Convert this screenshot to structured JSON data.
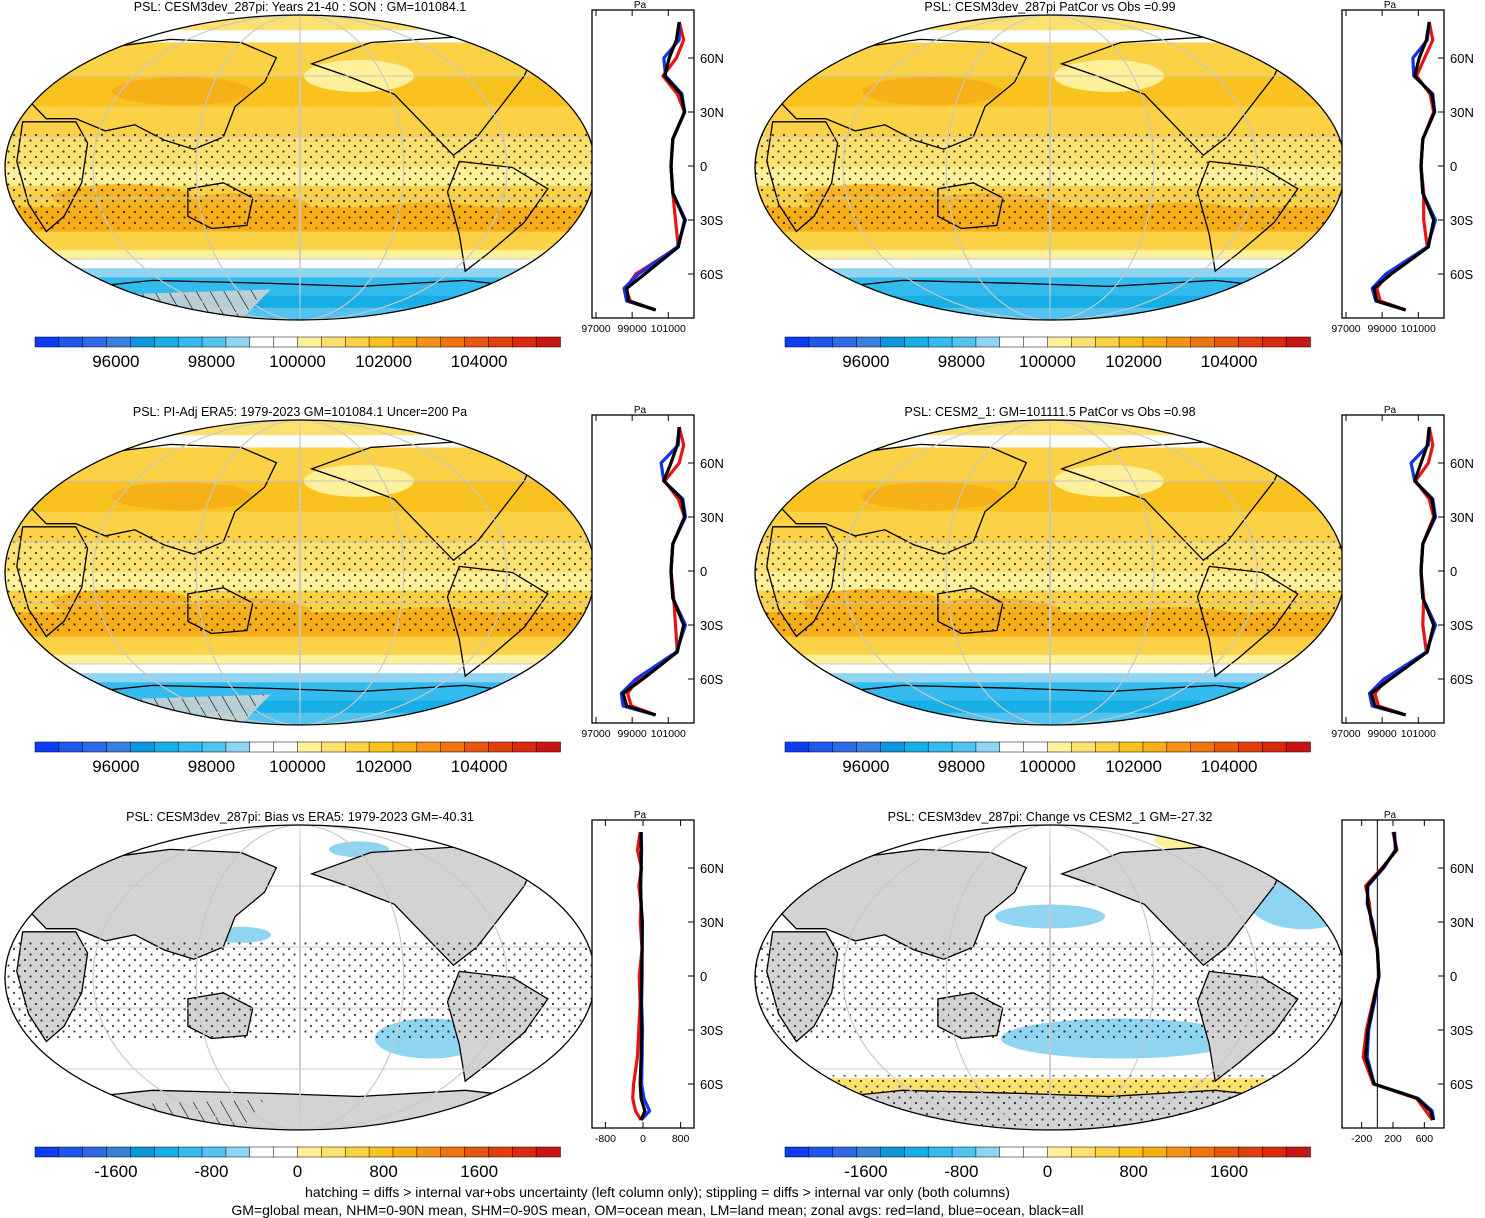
{
  "colors": {
    "scale": [
      "#0d3cf5",
      "#2058ee",
      "#2d6ae5",
      "#3a7fdc",
      "#0f96dc",
      "#18aee6",
      "#33bbef",
      "#52c3ef",
      "#8fd4f1",
      "#ffffff",
      "#ffffff",
      "#fff09a",
      "#fde170",
      "#fbd145",
      "#f9c21f",
      "#f6ad17",
      "#f39214",
      "#ee7311",
      "#e6580f",
      "#e23f0e",
      "#d92a0d",
      "#c81414"
    ],
    "land_gray": "#d3d3d3",
    "land_profile": "#e81414",
    "ocean_profile": "#1432e8",
    "all_profile": "#000000",
    "graticule": "#c8c8c8"
  },
  "panels": [
    {
      "id": "p1",
      "title": "PSL: CESM3dev_287pi: Years 21-40 : SON : GM=101084.1",
      "type": "absolute",
      "colorbar": {
        "labels": [
          "96000",
          "98000",
          "100000",
          "102000",
          "104000"
        ]
      },
      "profile": {
        "unit": "Pa",
        "xticks": [
          "97000",
          "99000",
          "101000"
        ],
        "yticks": [
          "60N",
          "30N",
          "0",
          "30S",
          "60S"
        ]
      }
    },
    {
      "id": "p2",
      "title": "PSL: CESM3dev_287pi PatCor vs Obs =0.99",
      "type": "absolute",
      "colorbar": {
        "labels": [
          "96000",
          "98000",
          "100000",
          "102000",
          "104000"
        ]
      },
      "profile": {
        "unit": "Pa",
        "xticks": [
          "97000",
          "99000",
          "101000"
        ],
        "yticks": [
          "60N",
          "30N",
          "0",
          "30S",
          "60S"
        ]
      }
    },
    {
      "id": "p3",
      "title": "PSL: PI-Adj ERA5: 1979-2023 GM=101084.1 Uncer=200 Pa",
      "type": "absolute",
      "colorbar": {
        "labels": [
          "96000",
          "98000",
          "100000",
          "102000",
          "104000"
        ]
      },
      "profile": {
        "unit": "Pa",
        "xticks": [
          "97000",
          "99000",
          "101000"
        ],
        "yticks": [
          "60N",
          "30N",
          "0",
          "30S",
          "60S"
        ]
      }
    },
    {
      "id": "p4",
      "title": "PSL: CESM2_1: GM=101111.5 PatCor vs Obs =0.98",
      "type": "absolute",
      "colorbar": {
        "labels": [
          "96000",
          "98000",
          "100000",
          "102000",
          "104000"
        ]
      },
      "profile": {
        "unit": "Pa",
        "xticks": [
          "97000",
          "99000",
          "101000"
        ],
        "yticks": [
          "60N",
          "30N",
          "0",
          "30S",
          "60S"
        ]
      }
    },
    {
      "id": "p5",
      "title": "PSL: CESM3dev_287pi: Bias vs ERA5: 1979-2023  GM=-40.31",
      "type": "bias",
      "colorbar": {
        "labels": [
          "-1600",
          "-800",
          "0",
          "800",
          "1600"
        ]
      },
      "profile": {
        "unit": "Pa",
        "xticks": [
          "-800",
          "0",
          "800"
        ],
        "yticks": [
          "60N",
          "30N",
          "0",
          "30S",
          "60S"
        ]
      }
    },
    {
      "id": "p6",
      "title": "PSL: CESM3dev_287pi: Change vs CESM2_1 GM=-27.32",
      "type": "change",
      "colorbar": {
        "labels": [
          "-1600",
          "-800",
          "0",
          "800",
          "1600"
        ]
      },
      "profile": {
        "unit": "Pa",
        "xticks": [
          "-200",
          "200",
          "600"
        ],
        "yticks": [
          "60N",
          "30N",
          "0",
          "30S",
          "60S"
        ]
      }
    }
  ],
  "chart_data": [
    {
      "type": "heatmap",
      "panel": "p1",
      "title": "PSL: CESM3dev_287pi: Years 21-40 : SON : GM=101084.1",
      "colorbar_range": [
        95000,
        105000
      ],
      "colorbar_labels": [
        96000,
        98000,
        100000,
        102000,
        104000
      ]
    },
    {
      "type": "line",
      "panel": "p1-profile",
      "xlabel": "Pa",
      "xlim": [
        97000,
        102200
      ],
      "lat": [
        80,
        70,
        60,
        50,
        40,
        30,
        15,
        0,
        -15,
        -30,
        -45,
        -60,
        -68,
        -75,
        -80
      ],
      "series": [
        {
          "name": "red=land",
          "values": [
            101600,
            101850,
            101450,
            100700,
            101500,
            101900,
            101250,
            101150,
            101250,
            101400,
            101550,
            99200,
            98650,
            98900,
            100300
          ]
        },
        {
          "name": "blue=ocean",
          "values": [
            101600,
            101600,
            100750,
            100850,
            101750,
            101900,
            101250,
            101150,
            101250,
            101950,
            101500,
            99350,
            98550,
            98700,
            100300
          ]
        },
        {
          "name": "black=all",
          "values": [
            101600,
            101450,
            101050,
            100800,
            101700,
            101900,
            101250,
            101150,
            101250,
            101900,
            101550,
            99700,
            98700,
            98800,
            100300
          ]
        }
      ]
    },
    {
      "type": "heatmap",
      "panel": "p2",
      "title": "PSL: CESM3dev_287pi PatCor vs Obs =0.99",
      "colorbar_range": [
        95000,
        105000
      ],
      "colorbar_labels": [
        96000,
        98000,
        100000,
        102000,
        104000
      ]
    },
    {
      "type": "line",
      "panel": "p2-profile",
      "xlabel": "Pa",
      "xlim": [
        97000,
        102200
      ],
      "lat": [
        80,
        70,
        60,
        50,
        40,
        30,
        15,
        0,
        -15,
        -30,
        -45,
        -60,
        -68,
        -75,
        -80
      ],
      "series": [
        {
          "name": "red=land",
          "values": [
            101600,
            101800,
            101350,
            100900,
            101650,
            101850,
            101250,
            101150,
            101300,
            101300,
            101500,
            99300,
            98700,
            98900,
            100300
          ]
        },
        {
          "name": "blue=ocean",
          "values": [
            101600,
            101500,
            100700,
            100750,
            101800,
            101900,
            101250,
            101150,
            101250,
            101950,
            101500,
            99200,
            98450,
            98650,
            100300
          ]
        },
        {
          "name": "black=all",
          "values": [
            101600,
            101450,
            101050,
            100800,
            101750,
            101900,
            101250,
            101150,
            101250,
            101850,
            101550,
            99500,
            98550,
            98700,
            100300
          ]
        }
      ]
    },
    {
      "type": "heatmap",
      "panel": "p3",
      "title": "PSL: PI-Adj ERA5: 1979-2023 GM=101084.1 Uncer=200 Pa",
      "colorbar_range": [
        95000,
        105000
      ],
      "colorbar_labels": [
        96000,
        98000,
        100000,
        102000,
        104000
      ]
    },
    {
      "type": "line",
      "panel": "p3-profile",
      "xlabel": "Pa",
      "xlim": [
        97000,
        102200
      ],
      "lat": [
        80,
        70,
        60,
        50,
        40,
        30,
        15,
        0,
        -15,
        -30,
        -45,
        -60,
        -68,
        -75,
        -80
      ],
      "series": [
        {
          "name": "red=land",
          "values": [
            101600,
            101850,
            101600,
            100800,
            101550,
            101900,
            101250,
            101150,
            101300,
            101400,
            101500,
            99300,
            98750,
            98950,
            100300
          ]
        },
        {
          "name": "blue=ocean",
          "values": [
            101600,
            101550,
            100600,
            100750,
            101800,
            101950,
            101250,
            101150,
            101250,
            101950,
            101450,
            99200,
            98400,
            98500,
            100300
          ]
        },
        {
          "name": "black=all",
          "values": [
            101600,
            101500,
            101150,
            100750,
            101750,
            101900,
            101250,
            101150,
            101250,
            101850,
            101500,
            99600,
            98500,
            98700,
            100300
          ]
        }
      ]
    },
    {
      "type": "heatmap",
      "panel": "p4",
      "title": "PSL: CESM2_1: GM=101111.5 PatCor vs Obs =0.98",
      "colorbar_range": [
        95000,
        105000
      ],
      "colorbar_labels": [
        96000,
        98000,
        100000,
        102000,
        104000
      ]
    },
    {
      "type": "line",
      "panel": "p4-profile",
      "xlabel": "Pa",
      "xlim": [
        97000,
        102200
      ],
      "lat": [
        80,
        70,
        60,
        50,
        40,
        30,
        15,
        0,
        -15,
        -30,
        -45,
        -60,
        -68,
        -75,
        -80
      ],
      "series": [
        {
          "name": "red=land",
          "values": [
            101600,
            101800,
            101550,
            100850,
            101600,
            101850,
            101250,
            101150,
            101300,
            101250,
            101450,
            99250,
            98600,
            98800,
            100300
          ]
        },
        {
          "name": "blue=ocean",
          "values": [
            101600,
            101550,
            100600,
            100800,
            101800,
            101950,
            101250,
            101150,
            101250,
            101950,
            101450,
            99100,
            98300,
            98450,
            100300
          ]
        },
        {
          "name": "black=all",
          "values": [
            101600,
            101500,
            101150,
            100800,
            101750,
            101900,
            101250,
            101150,
            101250,
            101850,
            101500,
            99450,
            98400,
            98600,
            100300
          ]
        }
      ]
    },
    {
      "type": "heatmap",
      "panel": "p5",
      "title": "PSL: CESM3dev_287pi: Bias vs ERA5: 1979-2023  GM=-40.31",
      "colorbar_range": [
        -2200,
        2200
      ],
      "colorbar_labels": [
        -1600,
        -800,
        0,
        800,
        1600
      ]
    },
    {
      "type": "line",
      "panel": "p5-profile",
      "xlabel": "Pa",
      "xlim": [
        -1000,
        1000
      ],
      "lat": [
        80,
        70,
        60,
        50,
        40,
        30,
        15,
        0,
        -15,
        -30,
        -45,
        -60,
        -68,
        -75,
        -80
      ],
      "series": [
        {
          "name": "red=land",
          "values": [
            -60,
            -120,
            -30,
            -90,
            -40,
            -60,
            -20,
            -80,
            -60,
            -90,
            -120,
            -200,
            -220,
            -160,
            -40
          ]
        },
        {
          "name": "blue=ocean",
          "values": [
            -40,
            -30,
            -40,
            -50,
            -40,
            -10,
            -20,
            -20,
            -30,
            -10,
            -20,
            -30,
            20,
            140,
            -40
          ]
        },
        {
          "name": "black=all",
          "values": [
            -40,
            -40,
            -40,
            -50,
            -40,
            -20,
            -20,
            -30,
            -40,
            -30,
            -40,
            -60,
            -40,
            40,
            -40
          ]
        }
      ]
    },
    {
      "type": "heatmap",
      "panel": "p6",
      "title": "PSL: CESM3dev_287pi: Change vs CESM2_1 GM=-27.32",
      "colorbar_range": [
        -2200,
        2200
      ],
      "colorbar_labels": [
        -1600,
        -800,
        0,
        800,
        1600
      ]
    },
    {
      "type": "line",
      "panel": "p6-profile",
      "xlabel": "Pa",
      "xlim": [
        -400,
        800
      ],
      "lat": [
        80,
        70,
        60,
        50,
        40,
        30,
        15,
        0,
        -15,
        -30,
        -45,
        -60,
        -68,
        -75,
        -80
      ],
      "series": [
        {
          "name": "red=land",
          "values": [
            200,
            250,
            60,
            -150,
            -100,
            -80,
            0,
            20,
            -60,
            -140,
            -180,
            -50,
            500,
            620,
            700
          ]
        },
        {
          "name": "blue=ocean",
          "values": [
            220,
            230,
            80,
            -120,
            -130,
            -60,
            0,
            20,
            -40,
            -110,
            -130,
            -40,
            520,
            700,
            720
          ]
        },
        {
          "name": "black=all",
          "values": [
            210,
            240,
            70,
            -130,
            -120,
            -70,
            0,
            20,
            -50,
            -120,
            -150,
            -40,
            510,
            680,
            710
          ]
        }
      ]
    }
  ],
  "footnote": {
    "line1": "hatching = diffs > internal var+obs uncertainty (left column only); stippling = diffs > internal var only (both columns)",
    "line2": "GM=global mean, NHM=0-90N mean, SHM=0-90S mean, OM=ocean mean, LM=land mean; zonal avgs: red=land, blue=ocean, black=all"
  }
}
